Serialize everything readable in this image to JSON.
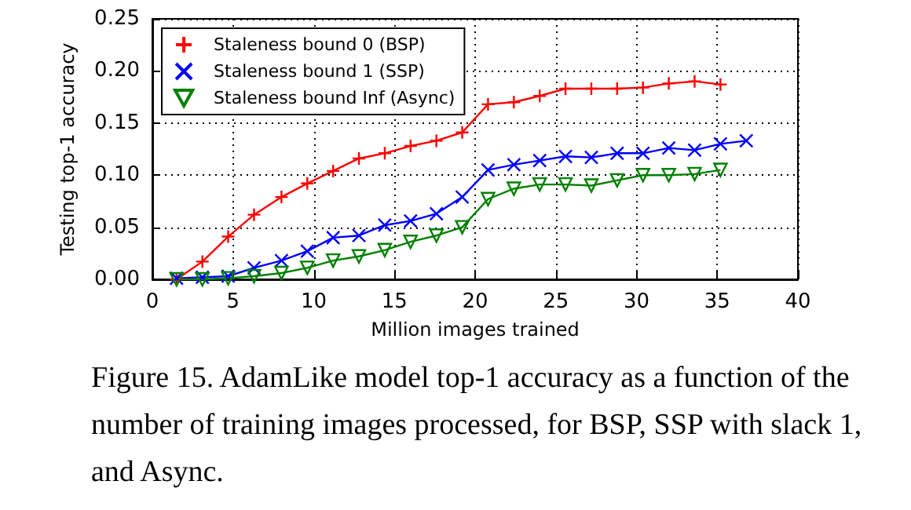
{
  "chart_data": {
    "type": "line",
    "x": [
      1.5,
      3.1,
      4.7,
      6.3,
      8,
      9.6,
      11.2,
      12.8,
      14.4,
      16,
      17.6,
      19.2,
      20.8,
      22.4,
      24,
      25.6,
      27.2,
      28.8,
      30.4,
      32,
      33.6,
      35.2,
      36.8
    ],
    "series": [
      {
        "name": "Staleness bound 0 (BSP)",
        "color": "#ff0000",
        "marker": "plus",
        "values": [
          0.0,
          0.017,
          0.041,
          0.062,
          0.079,
          0.092,
          0.104,
          0.116,
          0.121,
          0.128,
          0.133,
          0.141,
          0.168,
          0.17,
          0.176,
          0.183,
          0.183,
          0.183,
          0.184,
          0.188,
          0.19,
          0.187,
          null
        ]
      },
      {
        "name": "Staleness bound 1 (SSP)",
        "color": "#0000ff",
        "marker": "cross",
        "values": [
          0.001,
          0.002,
          0.003,
          0.011,
          0.018,
          0.027,
          0.04,
          0.042,
          0.052,
          0.056,
          0.063,
          0.079,
          0.105,
          0.11,
          0.114,
          0.118,
          0.117,
          0.121,
          0.121,
          0.126,
          0.124,
          0.13,
          0.133
        ]
      },
      {
        "name": "Staleness bound Inf (Async)",
        "color": "#008000",
        "marker": "triangle",
        "values": [
          0.0,
          0.0,
          0.001,
          0.003,
          0.006,
          0.011,
          0.018,
          0.022,
          0.028,
          0.036,
          0.042,
          0.05,
          0.077,
          0.087,
          0.091,
          0.091,
          0.09,
          0.095,
          0.1,
          0.1,
          0.101,
          0.105,
          null
        ]
      }
    ],
    "xlabel": "Million images trained",
    "ylabel": "Testing top-1 accuracy",
    "xlim": [
      0,
      40
    ],
    "xticks": [
      0,
      5,
      10,
      15,
      20,
      25,
      30,
      35,
      40
    ],
    "ylim": [
      0,
      0.25
    ],
    "yticks": [
      {
        "value": 0,
        "label": "0.00"
      },
      {
        "value": 0.05,
        "label": "0.05"
      },
      {
        "value": 0.1,
        "label": "0.10"
      },
      {
        "value": 0.15,
        "label": "0.15"
      },
      {
        "value": 0.2,
        "label": "0.20"
      },
      {
        "value": 0.25,
        "label": "0.25"
      }
    ],
    "grid": true,
    "legend": "top left",
    "line_style": "solid",
    "annotations": [
      "Figure 15. AdamLike model top-1 accuracy as a function of the number of training images processed, for BSP, SSP with slack 1, and Async."
    ]
  }
}
